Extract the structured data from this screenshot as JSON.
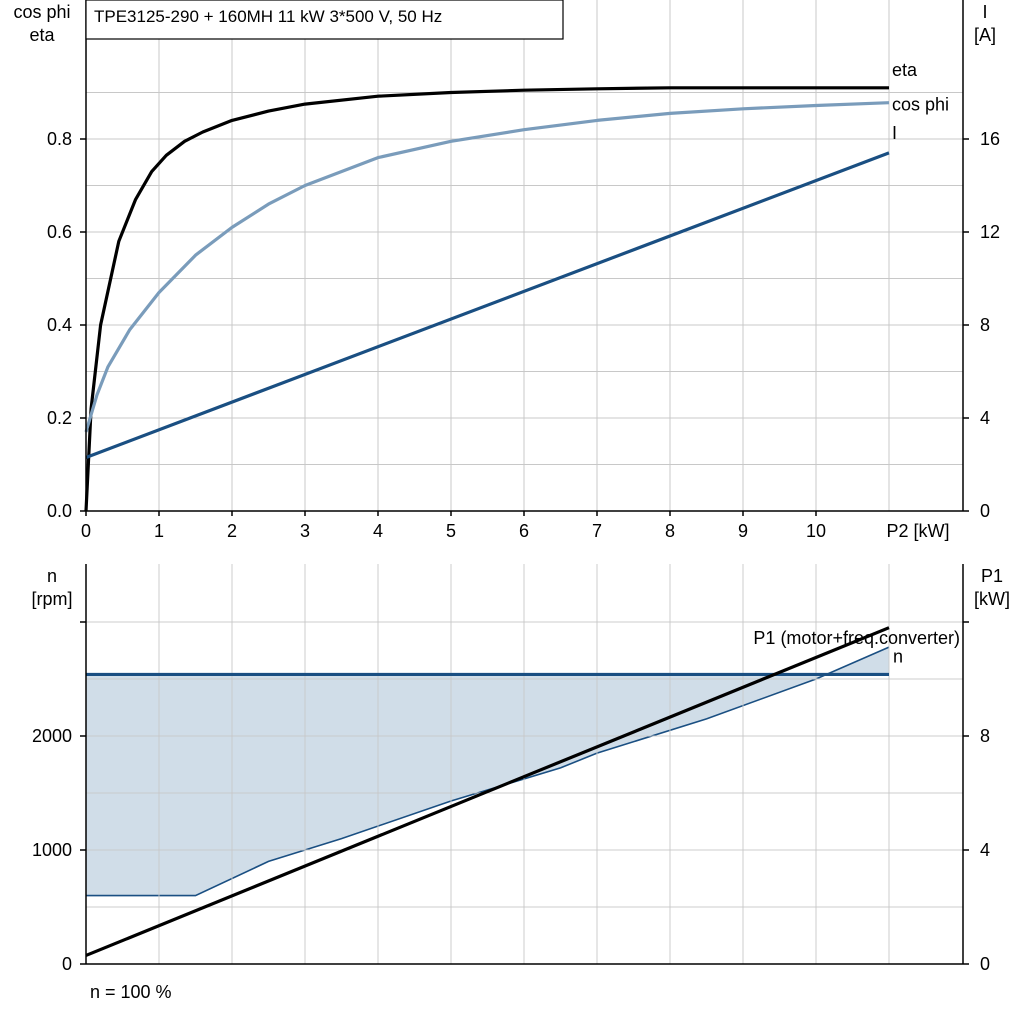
{
  "title": "TPE3125-290 + 160MH   11 kW   3*500 V, 50 Hz",
  "footer_note": "n = 100 %",
  "colors": {
    "eta": "#000000",
    "cosphi": "#7a9cbb",
    "current": "#1a4f82",
    "speed": "#1a4f82",
    "p1": "#000000",
    "fill": "#d0dde8",
    "grid": "#c8c8c8"
  },
  "chart_data": [
    {
      "type": "line",
      "x_axis": {
        "label": "P2 [kW]",
        "range": [
          0,
          11
        ],
        "ticks": [
          "0",
          "1",
          "2",
          "3",
          "4",
          "5",
          "6",
          "7",
          "8",
          "9",
          "10"
        ]
      },
      "y_left": {
        "label_line1": "cos phi",
        "label_line2": "eta",
        "range": [
          0,
          1.0
        ],
        "ticks": [
          "0.0",
          "0.2",
          "0.4",
          "0.6",
          "0.8"
        ]
      },
      "y_right": {
        "label_line1": "I",
        "label_line2": "[A]",
        "range": [
          0,
          20
        ],
        "ticks": [
          "0",
          "4",
          "8",
          "12",
          "16"
        ]
      },
      "grid": true,
      "series": [
        {
          "name": "eta",
          "axis": "left",
          "x": [
            0,
            0.07,
            0.2,
            0.45,
            0.68,
            0.9,
            1.1,
            1.35,
            1.6,
            2,
            2.5,
            3,
            4,
            5,
            6,
            7,
            8,
            9,
            10,
            11
          ],
          "y": [
            0,
            0.22,
            0.4,
            0.58,
            0.67,
            0.73,
            0.765,
            0.795,
            0.815,
            0.84,
            0.86,
            0.875,
            0.892,
            0.9,
            0.905,
            0.908,
            0.91,
            0.91,
            0.91,
            0.91
          ]
        },
        {
          "name": "cos phi",
          "axis": "left",
          "x": [
            0,
            0.15,
            0.3,
            0.6,
            1,
            1.5,
            2,
            2.5,
            3,
            4,
            5,
            6,
            7,
            8,
            9,
            10,
            11
          ],
          "y": [
            0.17,
            0.25,
            0.31,
            0.39,
            0.47,
            0.55,
            0.61,
            0.66,
            0.7,
            0.76,
            0.795,
            0.82,
            0.84,
            0.855,
            0.865,
            0.872,
            0.878
          ]
        },
        {
          "name": "I",
          "axis": "right",
          "x": [
            0,
            11
          ],
          "y": [
            2.3,
            15.4
          ]
        }
      ]
    },
    {
      "type": "area",
      "x_axis": {
        "label": "P2 [kW]",
        "range": [
          0,
          11
        ]
      },
      "y_left": {
        "label_line1": "n",
        "label_line2": "[rpm]",
        "range": [
          0,
          3000
        ],
        "ticks": [
          "0",
          "1000",
          "2000"
        ]
      },
      "y_right": {
        "label_line1": "P1",
        "label_line2": "[kW]",
        "range": [
          0,
          12
        ],
        "ticks": [
          "0",
          "4",
          "8"
        ]
      },
      "grid": true,
      "series": [
        {
          "name": "n",
          "axis": "left",
          "x": [
            0,
            11
          ],
          "y": [
            2540,
            2540
          ]
        },
        {
          "name": "P1 (motor+freq.converter)",
          "axis": "right",
          "x": [
            0,
            11
          ],
          "y": [
            0.3,
            11.8
          ]
        }
      ],
      "operating_range": {
        "x": [
          0,
          1.5,
          2.5,
          3.5,
          5,
          6.5,
          7,
          8.5,
          10,
          11
        ],
        "y_min": [
          600,
          600,
          900,
          1100,
          1430,
          1720,
          1850,
          2150,
          2500,
          2780
        ]
      }
    }
  ]
}
